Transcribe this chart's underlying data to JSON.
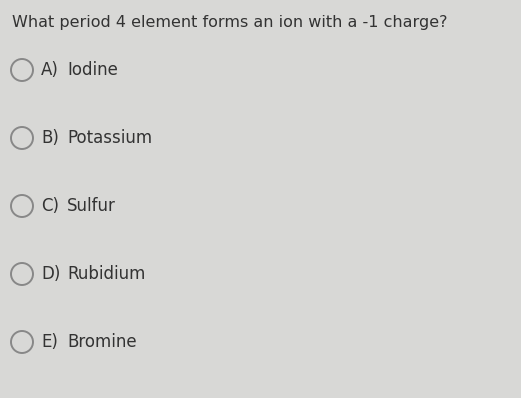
{
  "question": "What period 4 element forms an ion with a -1 charge?",
  "options": [
    {
      "label": "A)",
      "text": "Iodine"
    },
    {
      "label": "B)",
      "text": "Potassium"
    },
    {
      "label": "C)",
      "text": "Sulfur"
    },
    {
      "label": "D)",
      "text": "Rubidium"
    },
    {
      "label": "E)",
      "text": "Bromine"
    }
  ],
  "bg_color": "#d8d8d6",
  "text_color": "#333333",
  "circle_edge_color": "#888888",
  "question_fontsize": 11.5,
  "option_fontsize": 12,
  "fig_width": 5.21,
  "fig_height": 3.98,
  "dpi": 100
}
